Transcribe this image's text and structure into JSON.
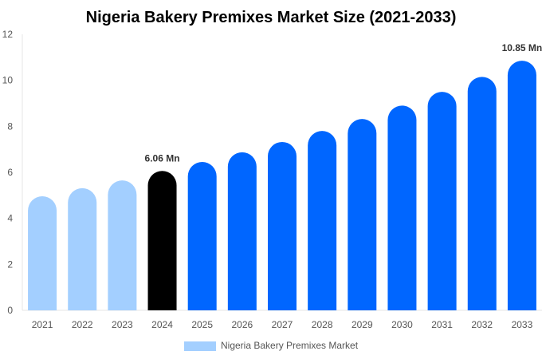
{
  "chart_data": {
    "type": "bar",
    "title": "Nigeria Bakery Premixes Market Size (2021-2033)",
    "categories": [
      "2021",
      "2022",
      "2023",
      "2024",
      "2025",
      "2026",
      "2027",
      "2028",
      "2029",
      "2030",
      "2031",
      "2032",
      "2033"
    ],
    "series": [
      {
        "name": "Nigeria Bakery Premixes Market",
        "values": [
          4.96,
          5.31,
          5.65,
          6.06,
          6.45,
          6.87,
          7.32,
          7.8,
          8.32,
          8.9,
          9.5,
          10.15,
          10.85
        ]
      }
    ],
    "data_labels": [
      {
        "category": "2024",
        "text": "6.06 Mn"
      },
      {
        "category": "2033",
        "text": "10.85 Mn"
      }
    ],
    "bar_colors": {
      "historical": "#a3cfff",
      "base_year": "#000000",
      "forecast": "#0066ff"
    },
    "ylim": [
      0,
      12
    ],
    "yticks": [
      0,
      2,
      4,
      6,
      8,
      10,
      12
    ],
    "grid": false,
    "legend_position": "bottom",
    "xlabel": "",
    "ylabel": ""
  }
}
